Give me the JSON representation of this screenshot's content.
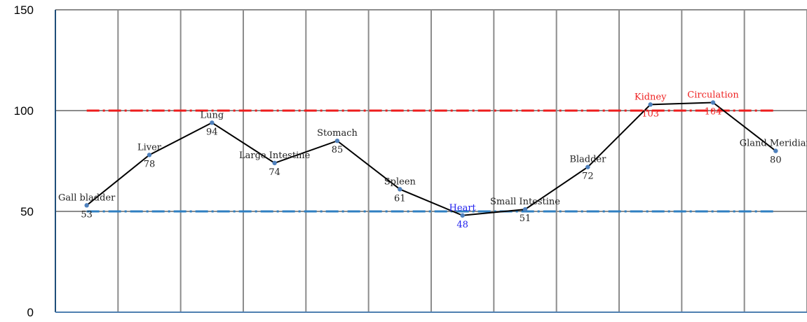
{
  "chart_data": {
    "type": "line",
    "categories": [
      "Gall bladder",
      "Liver",
      "Lung",
      "Large Intestine",
      "Stomach",
      "Spleen",
      "Heart",
      "Small Intestine",
      "Bladder",
      "Kidney",
      "Circulation",
      "Gland Meridian"
    ],
    "values": [
      53,
      78,
      94,
      74,
      85,
      61,
      48,
      51,
      72,
      103,
      104,
      80
    ],
    "value_labels": [
      "53",
      "78",
      "94",
      "74",
      "85",
      "61",
      "48",
      "51",
      "72",
      "103",
      "104",
      "80"
    ],
    "label_colors": [
      "#222222",
      "#222222",
      "#222222",
      "#222222",
      "#222222",
      "#222222",
      "#2222ee",
      "#222222",
      "#222222",
      "#ee2222",
      "#ee2222",
      "#222222"
    ],
    "ylim": [
      0,
      150
    ],
    "yticks": [
      "0",
      "50",
      "100",
      "150"
    ],
    "grid": true,
    "reference_lines": [
      {
        "value": 100,
        "color": "#ee1c1c",
        "style": "dash-dot"
      },
      {
        "value": 50,
        "color": "#2f7fc1",
        "style": "dash-dot"
      }
    ],
    "line_color": "#000000",
    "marker_color": "#4f81bd",
    "title": "",
    "xlabel": "",
    "ylabel": ""
  }
}
